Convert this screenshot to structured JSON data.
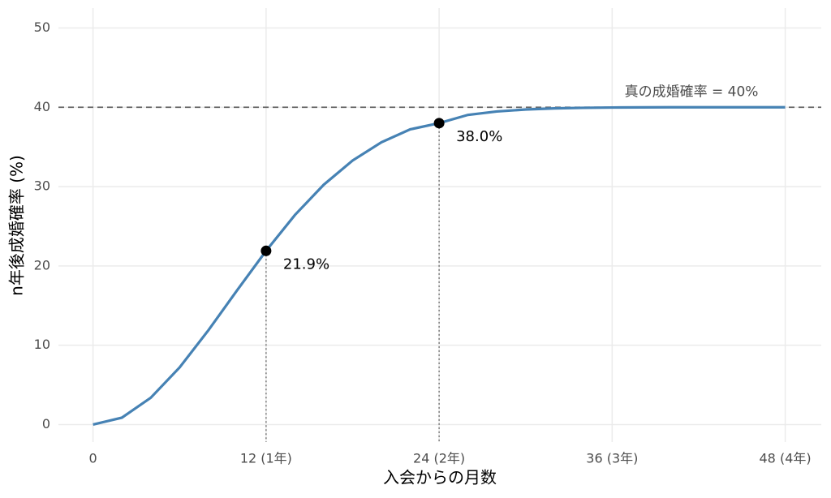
{
  "chart_data": {
    "type": "line",
    "x_label": "入会からの月数",
    "y_label": "n年後成婚確率 (%)",
    "x": [
      0,
      2,
      4,
      6,
      8,
      10,
      12,
      14,
      16,
      18,
      20,
      22,
      24,
      26,
      28,
      30,
      32,
      34,
      36,
      38,
      40,
      42,
      44,
      46,
      48
    ],
    "series": [
      {
        "color": "#4682b4",
        "values": [
          0,
          0.87,
          3.38,
          7.2,
          11.89,
          16.95,
          21.9,
          26.42,
          30.24,
          33.29,
          35.59,
          37.22,
          38.0,
          39.04,
          39.47,
          39.72,
          39.86,
          39.93,
          39.97,
          39.99,
          40,
          40,
          40,
          40,
          40
        ]
      }
    ],
    "highlights": {
      "x": [
        12,
        24
      ],
      "values": [
        21.9,
        38.0
      ],
      "value_labels": [
        "21.9%",
        "38.0%"
      ],
      "color": "#000000"
    },
    "reference_line": {
      "value": 40,
      "label": "真の成婚確率 = 40%",
      "color": "#666666"
    },
    "xlim": [
      -2.4,
      50.5
    ],
    "ylim": [
      -2.2,
      52.5
    ],
    "xticks": [
      0,
      {
        "value": 12,
        "label": "12 (1年)"
      },
      {
        "value": 24,
        "label": "24 (2年)"
      },
      {
        "value": 36,
        "label": "36 (3年)"
      },
      {
        "value": 48,
        "label": "48 (4年)"
      }
    ],
    "yticks": [
      0,
      10,
      20,
      30,
      40,
      50
    ],
    "grid": true
  }
}
